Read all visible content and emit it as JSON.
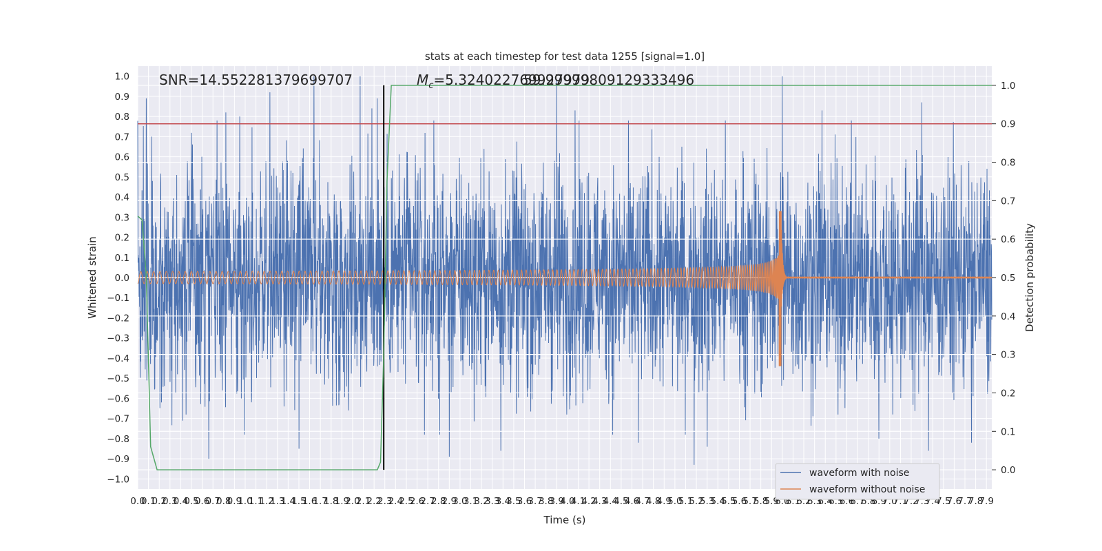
{
  "chart_data": {
    "type": "line",
    "title": "stats at each timestep for test data 1255 [signal=1.0]",
    "xlabel": "Time (s)",
    "ylabel": "Whitened strain",
    "ylabel_right": "Detection probability",
    "xlim": [
      0.0,
      7.95
    ],
    "ylim": [
      -1.05,
      1.05
    ],
    "ylim_right": [
      -0.05,
      1.05
    ],
    "x_ticks": [
      "0.0",
      "0.1",
      "0.2",
      "0.3",
      "0.4",
      "0.5",
      "0.6",
      "0.7",
      "0.8",
      "0.9",
      "1.0",
      "1.1",
      "1.2",
      "1.3",
      "1.4",
      "1.5",
      "1.6",
      "1.7",
      "1.8",
      "1.9",
      "2.0",
      "2.1",
      "2.2",
      "2.3",
      "2.4",
      "2.5",
      "2.6",
      "2.7",
      "2.8",
      "2.9",
      "3.0",
      "3.1",
      "3.2",
      "3.3",
      "3.4",
      "3.5",
      "3.6",
      "3.7",
      "3.8",
      "3.9",
      "4.0",
      "4.1",
      "4.2",
      "4.3",
      "4.4",
      "4.5",
      "4.6",
      "4.7",
      "4.8",
      "4.9",
      "5.0",
      "5.1",
      "5.2",
      "5.3",
      "5.4",
      "5.5",
      "5.6",
      "5.7",
      "5.8",
      "5.9",
      "6.0",
      "6.1",
      "6.2",
      "6.3",
      "6.4",
      "6.5",
      "6.6",
      "6.7",
      "6.8",
      "6.9",
      "7.0",
      "7.1",
      "7.2",
      "7.3",
      "7.4",
      "7.5",
      "7.6",
      "7.7",
      "7.8",
      "7.9"
    ],
    "y_ticks": [
      "1.0",
      "0.9",
      "0.8",
      "0.7",
      "0.6",
      "0.5",
      "0.4",
      "0.3",
      "0.2",
      "0.1",
      "0.0",
      "−0.1",
      "−0.2",
      "−0.3",
      "−0.4",
      "−0.5",
      "−0.6",
      "−0.7",
      "−0.8",
      "−0.9",
      "−1.0"
    ],
    "y_ticks_right": [
      "1.0",
      "0.9",
      "0.8",
      "0.7",
      "0.6",
      "0.5",
      "0.4",
      "0.3",
      "0.2",
      "0.1",
      "0.0"
    ],
    "grid": true,
    "legend_placement": "lower-right",
    "annotations": {
      "snr": "SNR=14.552281379699707",
      "mc_prefix": "M",
      "mc_sub": "c",
      "mc_value": "=5.324022769927979",
      "overlap": "59.99999809129333496"
    },
    "reference_lines": {
      "threshold_right": 0.9,
      "vertical_x": 2.29
    },
    "series": [
      {
        "name": "waveform with noise",
        "color": "#4c72b0",
        "kind": "noise",
        "amplitude_typical": 0.45,
        "spikes": [
          [
            0.08,
            0.89
          ],
          [
            0.13,
            0.7
          ],
          [
            0.22,
            -0.62
          ],
          [
            0.45,
            -0.68
          ],
          [
            0.66,
            -0.9
          ],
          [
            0.82,
            0.82
          ],
          [
            0.95,
            0.8
          ],
          [
            1.23,
            0.92
          ],
          [
            1.5,
            -0.85
          ],
          [
            1.64,
            1.0
          ],
          [
            2.07,
            1.0
          ],
          [
            2.18,
            0.84
          ],
          [
            2.23,
            0.89
          ],
          [
            2.9,
            -0.89
          ],
          [
            3.38,
            -0.86
          ],
          [
            3.9,
            0.98
          ],
          [
            4.07,
            0.83
          ],
          [
            4.66,
            -0.82
          ],
          [
            5.18,
            -0.93
          ],
          [
            5.3,
            -0.84
          ],
          [
            6.0,
            1.0
          ],
          [
            6.37,
            0.83
          ],
          [
            6.9,
            -0.8
          ],
          [
            7.3,
            0.87
          ],
          [
            7.36,
            -0.86
          ],
          [
            7.76,
            -0.82
          ]
        ]
      },
      {
        "name": "waveform without noise",
        "color": "#dd8452",
        "kind": "chirp",
        "merger_time": 5.99,
        "initial_amplitude": 0.03,
        "peak_amplitude": 0.33,
        "min_amplitude": -0.44
      },
      {
        "name": "detection probability",
        "color": "#55a868",
        "axis": "right",
        "x": [
          0.0,
          0.04,
          0.08,
          0.12,
          0.18,
          1.5,
          2.23,
          2.26,
          2.29,
          2.32,
          2.36,
          7.95
        ],
        "values": [
          0.66,
          0.65,
          0.5,
          0.06,
          0.0,
          0.0,
          0.0,
          0.02,
          0.3,
          0.75,
          1.0,
          1.0
        ]
      }
    ],
    "colors": {
      "plot_background": "#eaeaf2",
      "grid": "#ffffff",
      "threshold_line": "#c44e52",
      "vertical_line": "#000000"
    }
  }
}
